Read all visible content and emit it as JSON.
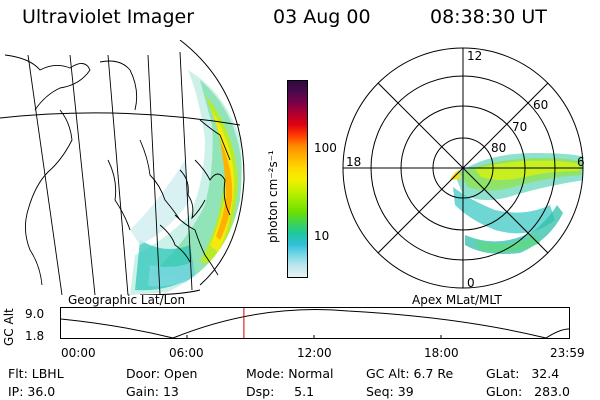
{
  "header": {
    "instrument": "Ultraviolet Imager",
    "date": "03 Aug 00",
    "time": "08:38:30 UT"
  },
  "colorbar": {
    "unit_label": "photon cm⁻²s⁻¹",
    "tick_labels": [
      "100",
      "10"
    ],
    "colors": [
      "#2c0a3c",
      "#4a0a4e",
      "#7a0048",
      "#b00030",
      "#e00010",
      "#ff3c00",
      "#ff8c00",
      "#ffb400",
      "#ffd800",
      "#f4f000",
      "#c8f000",
      "#9aeb00",
      "#6ee000",
      "#3fd450",
      "#1ec8a0",
      "#30c0d8",
      "#7ad8e8",
      "#bfe8ee",
      "#e8f2f2"
    ]
  },
  "geographic": {
    "caption": "Geographic Lat/Lon"
  },
  "polar": {
    "caption": "Apex MLat/MLT",
    "mlt_labels": {
      "top": "12",
      "left": "18",
      "right": "6",
      "bottom": "0"
    },
    "lat_labels": [
      "60",
      "70",
      "80"
    ]
  },
  "altitude_plot": {
    "y_title": "GC Alt",
    "y_ticks": [
      "9.0",
      "1.8"
    ],
    "x_ticks": [
      "00:00",
      "06:00",
      "12:00",
      "18:00",
      "23:59"
    ],
    "marker_time": "08:38",
    "marker_color": "#cc0000"
  },
  "status": {
    "row1": [
      {
        "label": "Flt:",
        "value": "LBHL"
      },
      {
        "label": "Door:",
        "value": "Open"
      },
      {
        "label": "Mode:",
        "value": "Normal"
      },
      {
        "label": "GC Alt:",
        "value": "6.7 Re"
      },
      {
        "label": "GLat:",
        "value": "32.4"
      }
    ],
    "row2": [
      {
        "label": "IP:",
        "value": "36.0"
      },
      {
        "label": "Gain:",
        "value": "13"
      },
      {
        "label": "Dsp:",
        "value": "5.1"
      },
      {
        "label": "Seq:",
        "value": "39"
      },
      {
        "label": "GLon:",
        "value": "283.0"
      }
    ]
  }
}
